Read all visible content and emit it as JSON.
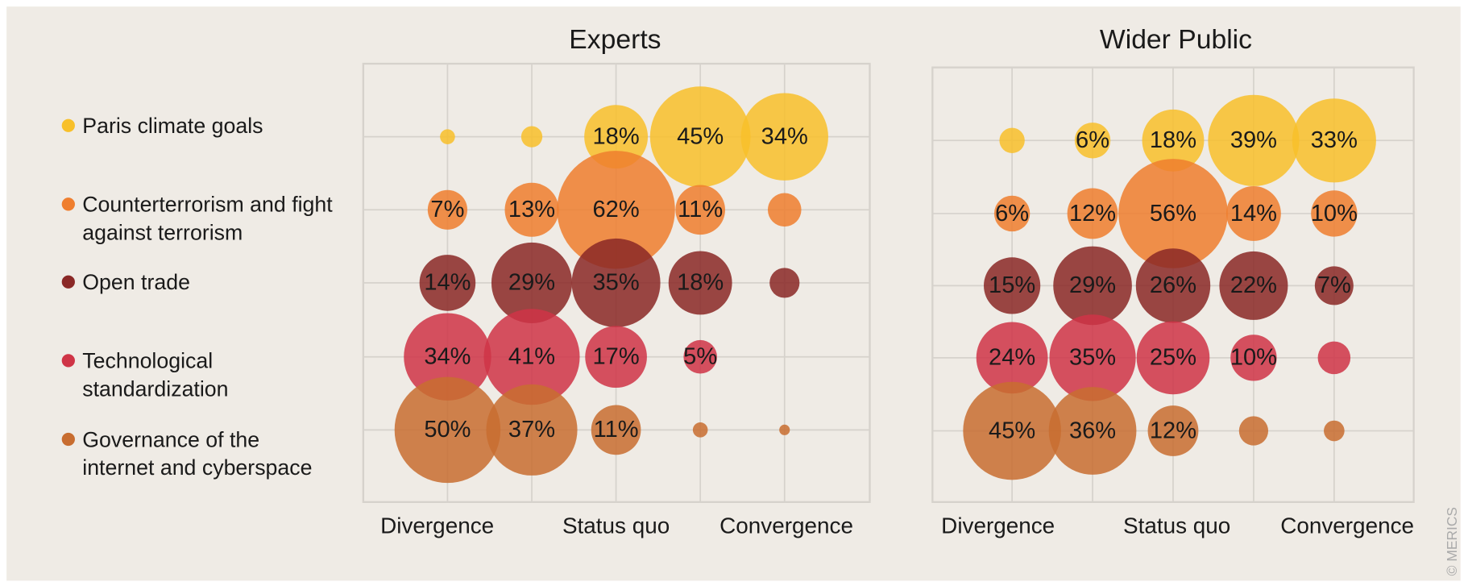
{
  "chart_data": [
    {
      "type": "bubble",
      "title": "Experts",
      "categories": [
        "Divergence",
        null,
        "Status quo",
        null,
        "Convergence"
      ],
      "series": [
        {
          "name": "Paris climate goals",
          "color": "#f8c02a",
          "values": [
            1,
            2,
            18,
            45,
            34
          ],
          "value_labels": [
            null,
            null,
            "18%",
            "45%",
            "34%"
          ]
        },
        {
          "name": "Counterterrorism and fight against terrorism",
          "color": "#ef7e2e",
          "values": [
            7,
            13,
            62,
            11,
            5
          ],
          "value_labels": [
            "7%",
            "13%",
            "62%",
            "11%",
            null
          ]
        },
        {
          "name": "Open trade",
          "color": "#8a2826",
          "values": [
            14,
            29,
            35,
            18,
            4
          ],
          "value_labels": [
            "14%",
            "29%",
            "35%",
            "18%",
            null
          ]
        },
        {
          "name": "Technological standardization",
          "color": "#cf3446",
          "values": [
            34,
            41,
            17,
            5,
            0
          ],
          "value_labels": [
            "34%",
            "41%",
            "17%",
            "5%",
            null
          ]
        },
        {
          "name": "Governance of the internet and cyberspace",
          "color": "#c86d30",
          "values": [
            50,
            37,
            11,
            1,
            0.5
          ],
          "value_labels": [
            "50%",
            "37%",
            "11%",
            null,
            null
          ]
        }
      ]
    },
    {
      "type": "bubble",
      "title": "Wider Public",
      "categories": [
        "Divergence",
        null,
        "Status quo",
        null,
        "Convergence"
      ],
      "series": [
        {
          "color": "#f8c02a",
          "values": [
            3,
            6,
            18,
            39,
            33
          ],
          "value_labels": [
            null,
            "6%",
            "18%",
            "39%",
            "33%"
          ]
        },
        {
          "color": "#ef7e2e",
          "values": [
            6,
            12,
            56,
            14,
            10
          ],
          "value_labels": [
            "6%",
            "12%",
            "56%",
            "14%",
            "10%"
          ]
        },
        {
          "color": "#8a2826",
          "values": [
            15,
            29,
            26,
            22,
            7
          ],
          "value_labels": [
            "15%",
            "29%",
            "26%",
            "22%",
            "7%"
          ]
        },
        {
          "color": "#cf3446",
          "values": [
            24,
            35,
            25,
            10,
            5
          ],
          "value_labels": [
            "24%",
            "35%",
            "25%",
            "10%",
            null
          ]
        },
        {
          "color": "#c86d30",
          "values": [
            45,
            36,
            12,
            4,
            2
          ],
          "value_labels": [
            "45%",
            "36%",
            "12%",
            null,
            null
          ]
        }
      ]
    }
  ],
  "credit": "© MERICS"
}
